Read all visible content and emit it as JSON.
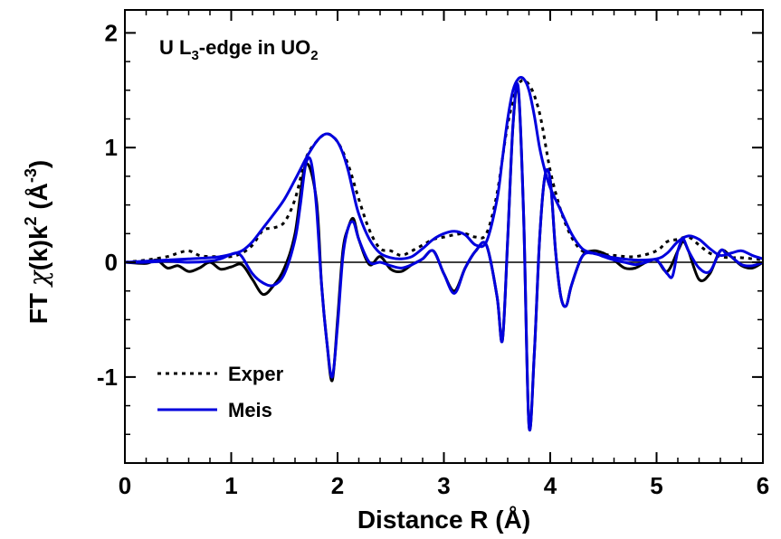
{
  "chart_data": {
    "type": "line",
    "title_parts": {
      "prefix": "U L",
      "sub1": "3",
      "middle": "-edge in UO",
      "sub2": "2"
    },
    "xlabel": "Distance R (Å)",
    "ylabel_parts": {
      "prefix": "FT ",
      "chi": "χ",
      "middle": "(k)k",
      "sup1": "2",
      "space": " (Å",
      "sup2": "-3",
      "suffix": ")"
    },
    "xlim": [
      0,
      6
    ],
    "ylim": [
      -1.75,
      2.2
    ],
    "xticks": [
      0,
      1,
      2,
      3,
      4,
      5,
      6
    ],
    "xtick_labels": [
      "0",
      "1",
      "2",
      "3",
      "4",
      "5",
      "6"
    ],
    "yticks": [
      -1,
      0,
      1,
      2
    ],
    "ytick_labels": [
      "-1",
      "0",
      "1",
      "2"
    ],
    "zero_line": true,
    "grid": false,
    "legend": {
      "position": "bottom-left",
      "entries": [
        {
          "label": "Exper",
          "color": "#000000",
          "style": "dotted"
        },
        {
          "label": "Meis",
          "color": "#0000dd",
          "style": "solid"
        }
      ]
    },
    "series": [
      {
        "name": "Exper",
        "label": "Exper",
        "component": "magnitude",
        "color": "#000000",
        "style": "dotted",
        "x": [
          0,
          0.2,
          0.4,
          0.5,
          0.6,
          0.7,
          0.8,
          0.9,
          1.0,
          1.1,
          1.2,
          1.3,
          1.4,
          1.5,
          1.6,
          1.7,
          1.8,
          1.9,
          2.0,
          2.1,
          2.2,
          2.3,
          2.4,
          2.5,
          2.6,
          2.7,
          2.8,
          2.9,
          3.0,
          3.1,
          3.2,
          3.3,
          3.4,
          3.5,
          3.6,
          3.7,
          3.8,
          3.9,
          4.0,
          4.1,
          4.2,
          4.3,
          4.4,
          4.6,
          4.8,
          5.0,
          5.1,
          5.2,
          5.3,
          5.4,
          5.5,
          5.6,
          5.7,
          5.8,
          6.0
        ],
        "y": [
          0,
          0.02,
          0.05,
          0.08,
          0.1,
          0.06,
          0.05,
          0.05,
          0.05,
          0.08,
          0.15,
          0.28,
          0.3,
          0.35,
          0.55,
          0.9,
          1.05,
          1.12,
          1.05,
          0.85,
          0.55,
          0.28,
          0.12,
          0.1,
          0.06,
          0.1,
          0.15,
          0.2,
          0.22,
          0.24,
          0.25,
          0.22,
          0.25,
          0.6,
          1.2,
          1.55,
          1.55,
          1.3,
          0.8,
          0.45,
          0.22,
          0.1,
          0.08,
          0.06,
          0.05,
          0.1,
          0.18,
          0.2,
          0.22,
          0.15,
          0.08,
          0.05,
          0.04,
          0.04,
          0.02
        ]
      },
      {
        "name": "Exper",
        "component": "imaginary",
        "color": "#000000",
        "style": "solid",
        "x": [
          0,
          0.2,
          0.3,
          0.4,
          0.5,
          0.6,
          0.7,
          0.8,
          0.9,
          1.0,
          1.1,
          1.2,
          1.3,
          1.4,
          1.5,
          1.6,
          1.7,
          1.8,
          1.85,
          1.9,
          1.95,
          2.0,
          2.05,
          2.1,
          2.15,
          2.2,
          2.3,
          2.4,
          2.5,
          2.6,
          2.7,
          2.8,
          2.9,
          3.0,
          3.1,
          3.2,
          3.3,
          3.4,
          3.5,
          3.55,
          3.6,
          3.65,
          3.7,
          3.75,
          3.8,
          3.85,
          3.9,
          3.95,
          4.0,
          4.05,
          4.1,
          4.15,
          4.2,
          4.3,
          4.4,
          4.5,
          4.6,
          4.7,
          4.8,
          4.9,
          5.0,
          5.1,
          5.2,
          5.25,
          5.3,
          5.4,
          5.5,
          5.6,
          5.7,
          5.8,
          5.9,
          6.0
        ],
        "y": [
          0,
          -0.01,
          0.02,
          -0.05,
          -0.03,
          -0.08,
          -0.05,
          0.0,
          -0.06,
          -0.04,
          -0.02,
          -0.15,
          -0.28,
          -0.2,
          -0.05,
          0.25,
          0.85,
          0.55,
          -0.2,
          -0.7,
          -1.03,
          -0.5,
          0.1,
          0.3,
          0.38,
          0.2,
          -0.02,
          0.05,
          -0.06,
          -0.08,
          -0.02,
          0.03,
          0.1,
          -0.1,
          -0.25,
          -0.05,
          0.1,
          0.15,
          -0.3,
          -0.68,
          0.2,
          1.2,
          1.5,
          0.4,
          -1.42,
          -0.8,
          0.2,
          0.75,
          0.72,
          0.1,
          -0.3,
          -0.38,
          -0.2,
          0.05,
          0.1,
          0.08,
          0.02,
          -0.05,
          -0.05,
          0.0,
          0.02,
          -0.08,
          0.1,
          0.18,
          0.1,
          -0.15,
          -0.1,
          0.1,
          0.05,
          -0.03,
          -0.05,
          0.0
        ]
      },
      {
        "name": "Meis",
        "label": "Meis",
        "component": "magnitude",
        "color": "#0000dd",
        "style": "solid",
        "x": [
          0,
          0.2,
          0.4,
          0.6,
          0.8,
          0.9,
          1.0,
          1.1,
          1.2,
          1.3,
          1.4,
          1.5,
          1.6,
          1.7,
          1.75,
          1.8,
          1.85,
          1.9,
          1.95,
          2.0,
          2.05,
          2.1,
          2.15,
          2.2,
          2.3,
          2.4,
          2.5,
          2.6,
          2.7,
          2.8,
          2.9,
          3.0,
          3.1,
          3.2,
          3.3,
          3.4,
          3.5,
          3.55,
          3.6,
          3.65,
          3.7,
          3.75,
          3.8,
          3.85,
          3.9,
          3.95,
          4.0,
          4.1,
          4.2,
          4.3,
          4.4,
          4.5,
          4.6,
          4.8,
          5.0,
          5.1,
          5.2,
          5.3,
          5.4,
          5.5,
          5.6,
          5.7,
          5.8,
          5.9,
          6.0
        ],
        "y": [
          0,
          0.01,
          0.02,
          0.03,
          0.04,
          0.05,
          0.07,
          0.1,
          0.18,
          0.3,
          0.42,
          0.55,
          0.72,
          0.9,
          0.98,
          1.05,
          1.1,
          1.12,
          1.1,
          1.05,
          0.95,
          0.8,
          0.6,
          0.42,
          0.2,
          0.08,
          0.04,
          0.03,
          0.05,
          0.12,
          0.2,
          0.25,
          0.27,
          0.24,
          0.15,
          0.18,
          0.55,
          0.9,
          1.25,
          1.5,
          1.6,
          1.6,
          1.5,
          1.28,
          1.0,
          0.8,
          0.65,
          0.45,
          0.25,
          0.12,
          0.08,
          0.06,
          0.04,
          0.02,
          0.03,
          0.08,
          0.18,
          0.23,
          0.2,
          0.12,
          0.06,
          0.08,
          0.1,
          0.06,
          0.03
        ]
      },
      {
        "name": "Meis",
        "component": "imaginary",
        "color": "#0000dd",
        "style": "solid",
        "x": [
          0,
          0.2,
          0.4,
          0.6,
          0.8,
          0.9,
          1.0,
          1.05,
          1.1,
          1.2,
          1.3,
          1.4,
          1.5,
          1.6,
          1.65,
          1.7,
          1.75,
          1.8,
          1.85,
          1.9,
          1.95,
          2.0,
          2.05,
          2.1,
          2.15,
          2.2,
          2.3,
          2.4,
          2.5,
          2.6,
          2.7,
          2.8,
          2.9,
          3.0,
          3.1,
          3.2,
          3.3,
          3.4,
          3.5,
          3.55,
          3.6,
          3.65,
          3.7,
          3.75,
          3.8,
          3.85,
          3.9,
          3.95,
          4.0,
          4.05,
          4.1,
          4.15,
          4.2,
          4.3,
          4.4,
          4.5,
          4.6,
          4.7,
          4.8,
          4.9,
          5.0,
          5.1,
          5.15,
          5.2,
          5.25,
          5.3,
          5.4,
          5.5,
          5.6,
          5.65,
          5.7,
          5.8,
          5.9,
          6.0
        ],
        "y": [
          0,
          0.0,
          0.01,
          0.0,
          0.01,
          0.03,
          0.07,
          0.08,
          0.05,
          -0.1,
          -0.18,
          -0.2,
          -0.1,
          0.2,
          0.5,
          0.85,
          0.88,
          0.5,
          -0.2,
          -0.7,
          -1.0,
          -0.55,
          0.05,
          0.3,
          0.35,
          0.2,
          0.0,
          0.0,
          -0.03,
          -0.05,
          -0.02,
          0.03,
          0.1,
          -0.1,
          -0.27,
          -0.05,
          0.1,
          0.15,
          -0.3,
          -0.68,
          0.2,
          1.2,
          1.52,
          0.4,
          -1.42,
          -0.8,
          0.2,
          0.75,
          0.72,
          0.1,
          -0.3,
          -0.38,
          -0.2,
          0.05,
          0.08,
          0.05,
          0.02,
          0.0,
          -0.02,
          0.0,
          0.02,
          -0.1,
          -0.12,
          0.1,
          0.2,
          0.1,
          -0.05,
          -0.08,
          0.1,
          0.08,
          0.05,
          -0.02,
          -0.03,
          0.0
        ]
      }
    ]
  }
}
